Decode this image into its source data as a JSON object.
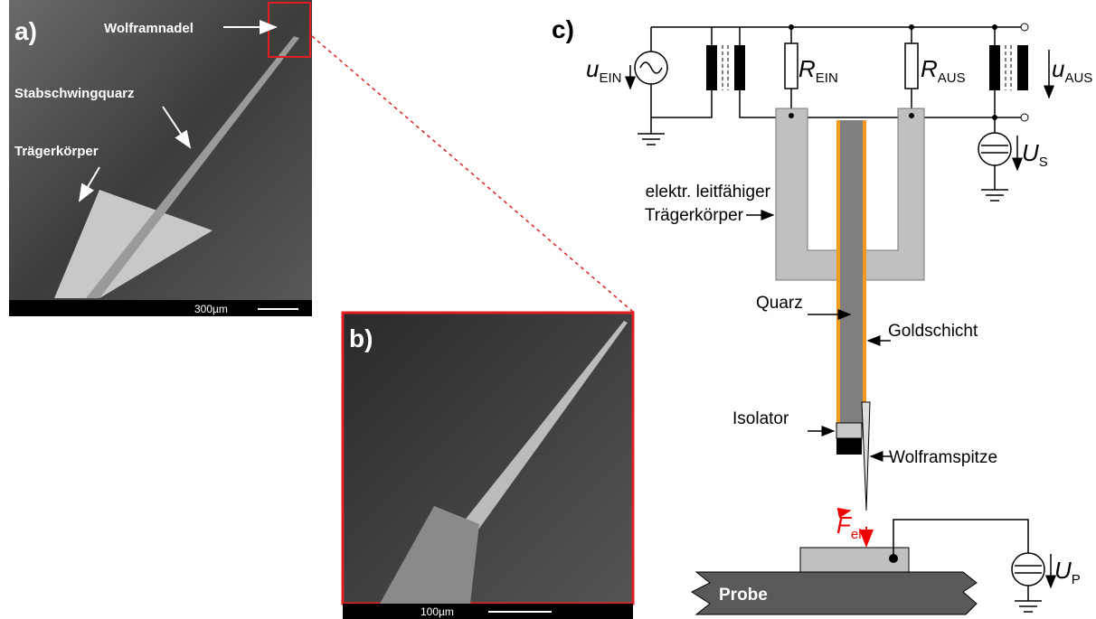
{
  "panel_a": {
    "label": "a)",
    "annotations": [
      "Wolframnadel",
      "Stabschwingquarz",
      "Trägerkörper"
    ],
    "scale": "300µm"
  },
  "panel_b": {
    "label": "b)",
    "scale": "100µm"
  },
  "panel_c": {
    "label": "c)",
    "u_ein": {
      "symbol": "u",
      "sub": "EIN"
    },
    "r_ein": {
      "symbol": "R",
      "sub": "EIN"
    },
    "r_aus": {
      "symbol": "R",
      "sub": "AUS"
    },
    "u_aus": {
      "symbol": "u",
      "sub": "AUS"
    },
    "u_s": {
      "symbol": "U",
      "sub": "S"
    },
    "carrier": [
      "elektr. leitfähiger",
      "Trägerkörper"
    ],
    "quartz": "Quarz",
    "gold": "Goldschicht",
    "isolator": "Isolator",
    "tip": "Wolframspitze",
    "force": {
      "symbol": "F",
      "sub": "el"
    },
    "u_p": {
      "symbol": "U",
      "sub": "P"
    },
    "probe": "Probe"
  }
}
